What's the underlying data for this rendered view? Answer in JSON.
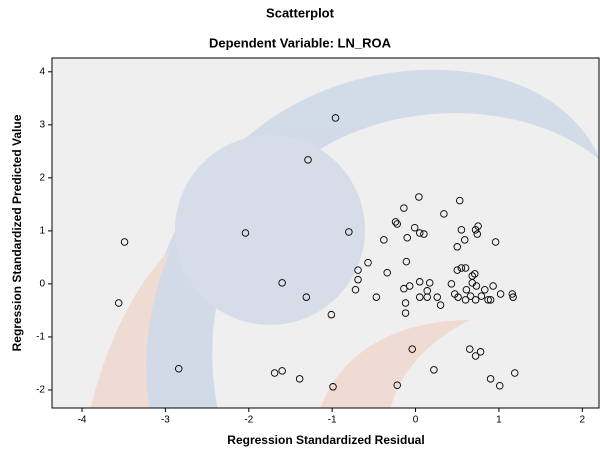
{
  "chart_data": {
    "type": "scatter",
    "title": "Scatterplot",
    "subtitle": "Dependent Variable: LN_ROA",
    "x_label": "Regression Standardized Residual",
    "y_label": "Regression Standardized Predicted Value",
    "xlim": [
      -4.36,
      2.2
    ],
    "ylim": [
      -2.34,
      4.26
    ],
    "xticks": [
      -4,
      -3,
      -2,
      -1,
      0,
      1,
      2
    ],
    "yticks": [
      -2,
      -1,
      0,
      1,
      2,
      3,
      4
    ],
    "grid": false,
    "color": "#000000",
    "x": [
      -0.96,
      -1.29,
      -3.49,
      -3.56,
      -2.04,
      -1.6,
      -1.31,
      -0.8,
      -2.84,
      -1.69,
      -1.6,
      -1.39,
      -0.99,
      -1.01,
      -0.69,
      -0.69,
      -0.57,
      -0.72,
      -0.47,
      -0.38,
      -0.34,
      -0.24,
      -0.22,
      -0.14,
      -0.1,
      -0.11,
      -0.14,
      -0.07,
      -0.12,
      -0.12,
      -0.04,
      -0.22,
      -0.01,
      0.04,
      0.05,
      0.1,
      0.05,
      0.05,
      0.14,
      0.14,
      0.17,
      0.22,
      0.34,
      0.26,
      0.3,
      0.43,
      0.47,
      0.51,
      0.53,
      0.5,
      0.55,
      0.5,
      0.55,
      0.59,
      0.61,
      0.6,
      0.6,
      0.68,
      0.68,
      0.66,
      0.72,
      0.72,
      0.74,
      0.75,
      0.71,
      0.73,
      0.79,
      0.83,
      0.87,
      0.65,
      0.72,
      0.78,
      0.96,
      0.93,
      0.9,
      1.02,
      1.16,
      1.17,
      0.9,
      1.01,
      1.19
    ],
    "values": [
      3.13,
      2.34,
      0.79,
      -0.36,
      0.96,
      0.02,
      -0.25,
      0.98,
      -1.6,
      -1.68,
      -1.64,
      -1.79,
      -1.94,
      -0.58,
      0.26,
      0.08,
      0.4,
      -0.11,
      -0.25,
      0.83,
      0.21,
      1.17,
      1.13,
      1.43,
      0.87,
      0.42,
      -0.09,
      -0.04,
      -0.36,
      -0.55,
      -1.23,
      -1.91,
      1.06,
      1.64,
      0.96,
      0.94,
      0.04,
      -0.25,
      -0.13,
      -0.25,
      0.02,
      -1.62,
      1.32,
      -0.25,
      -0.4,
      0.0,
      -0.19,
      -0.25,
      1.57,
      0.26,
      0.3,
      0.7,
      1.02,
      0.83,
      -0.11,
      -0.3,
      0.3,
      0.15,
      0.02,
      -0.23,
      -0.3,
      1.02,
      0.94,
      1.09,
      0.19,
      -0.04,
      -0.23,
      -0.11,
      -0.3,
      -1.23,
      -1.36,
      -1.28,
      0.79,
      -0.04,
      -0.3,
      -0.19,
      -0.19,
      -0.25,
      -1.79,
      -1.92,
      -1.68
    ]
  }
}
